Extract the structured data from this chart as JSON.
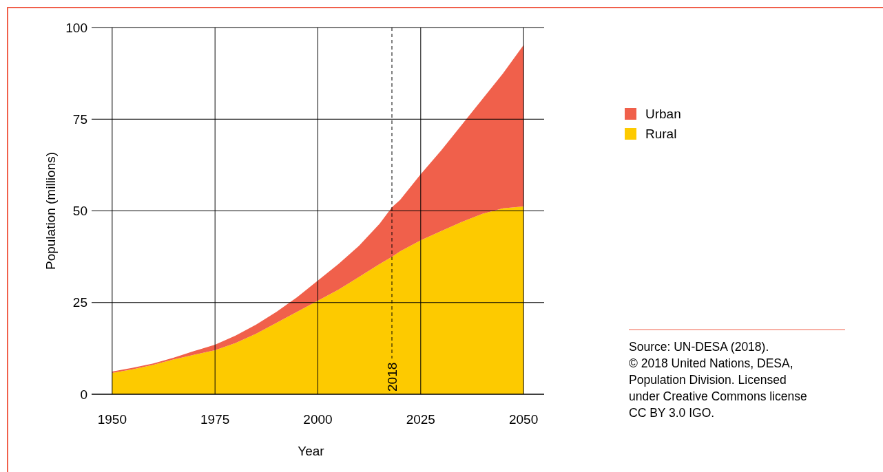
{
  "chart_data": {
    "type": "area",
    "stacked": true,
    "xlabel": "Year",
    "ylabel": "Population (millions)",
    "x": [
      1950,
      1955,
      1960,
      1965,
      1970,
      1975,
      1980,
      1985,
      1990,
      1995,
      2000,
      2005,
      2010,
      2015,
      2018,
      2020,
      2025,
      2030,
      2035,
      2040,
      2045,
      2050
    ],
    "series": [
      {
        "name": "Rural",
        "color": "#fdca00",
        "values": [
          5.8,
          6.8,
          8,
          9.5,
          10.8,
          12,
          14,
          16.5,
          19.5,
          22.5,
          25.5,
          28.5,
          32,
          35.5,
          37.5,
          39,
          42,
          44.5,
          47,
          49.2,
          50.7,
          51.2
        ]
      },
      {
        "name": "Urban",
        "color": "#f0604b",
        "values": [
          0.4,
          0.4,
          0.4,
          0.5,
          1,
          1.5,
          2,
          2.5,
          3,
          4,
          5.5,
          7,
          8.5,
          11,
          13.5,
          14,
          18,
          22,
          26.5,
          31.3,
          36.8,
          44
        ]
      }
    ],
    "xlim": [
      1945,
      2055
    ],
    "xticks": [
      1950,
      1975,
      2000,
      2025,
      2050
    ],
    "ylim": [
      0,
      100
    ],
    "yticks": [
      0,
      25,
      50,
      75,
      100
    ],
    "grid": true,
    "legend": "right",
    "ref_lines": [
      {
        "axis": "x",
        "value": 2018,
        "label": "2018",
        "line_style": "dashed"
      }
    ],
    "annotations": [
      "Source: UN-DESA (2018).",
      "© 2018 United Nations, DESA, Population Division. Licensed under Creative Commons license CC BY 3.0 IGO."
    ]
  }
}
